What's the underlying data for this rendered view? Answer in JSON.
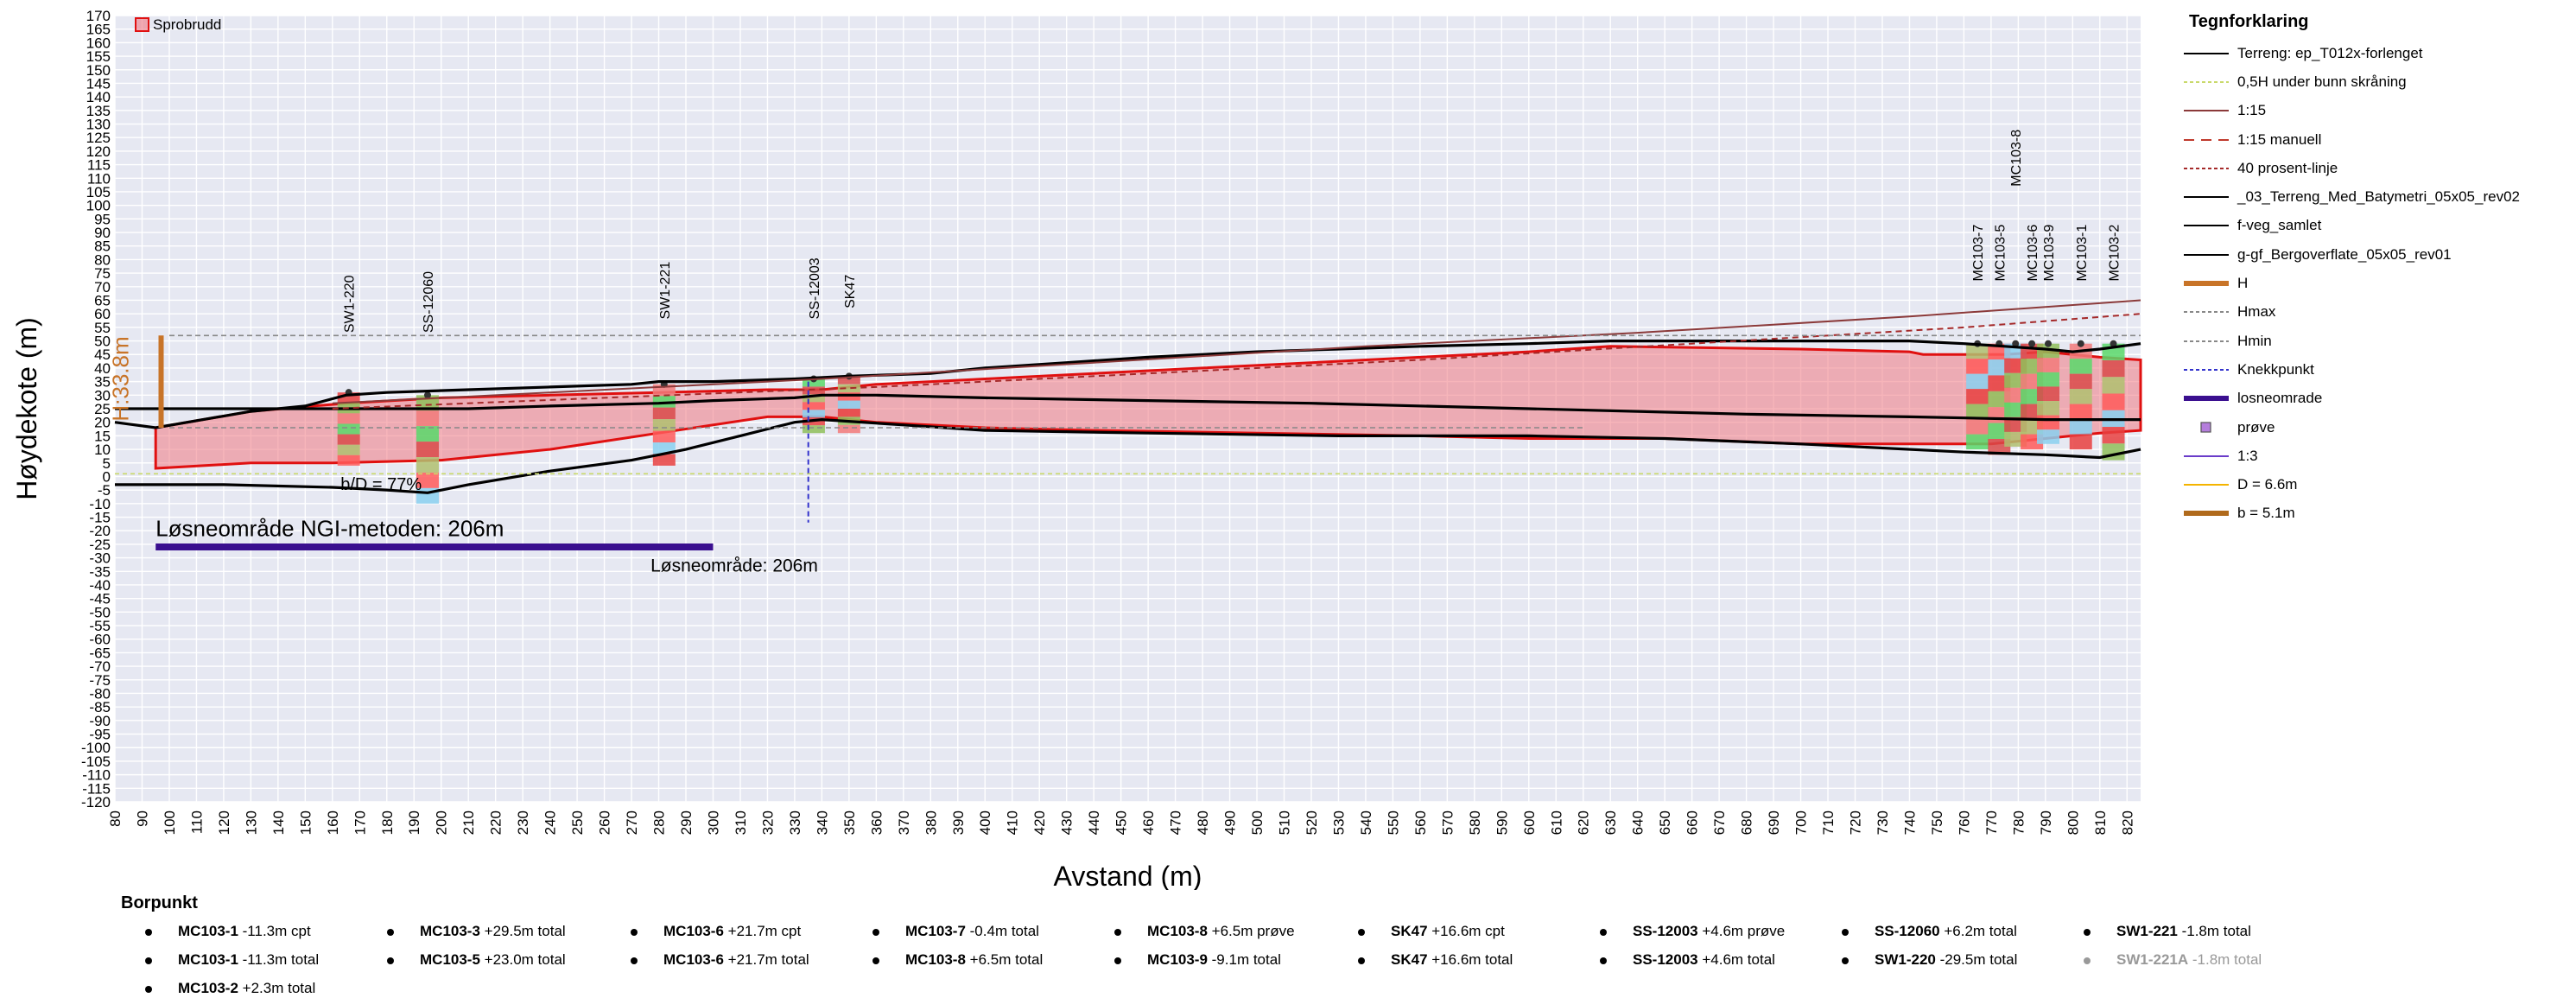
{
  "chart_data": {
    "type": "area",
    "xlabel": "Avstand (m)",
    "ylabel": "Høydekote (m)",
    "xlim": [
      80,
      825
    ],
    "ylim": [
      -120,
      170
    ],
    "xticks_step": 10,
    "yticks_step": 5,
    "grid": true,
    "top_legend": "Sprobrudd",
    "series": [
      {
        "name": "Terreng: ep_T012x-forlenget",
        "style": "terrain",
        "color": "#000000",
        "x": [
          80,
          95,
          130,
          150,
          165,
          180,
          210,
          240,
          270,
          280,
          300,
          330,
          350,
          380,
          400,
          430,
          460,
          500,
          530,
          560,
          600,
          630,
          660,
          700,
          740,
          760,
          775,
          790,
          800,
          810,
          825
        ],
        "y": [
          20,
          18,
          24,
          26,
          30,
          31,
          32,
          33,
          34,
          35,
          35,
          36,
          37,
          38,
          40,
          42,
          44,
          46,
          47,
          48,
          49,
          50,
          50,
          50,
          50,
          49,
          48,
          47,
          46,
          47,
          49
        ]
      },
      {
        "name": "_03_Terreng_Med_Batymetri_05x05_rev02",
        "style": "bathy",
        "color": "#000000",
        "x": [
          80,
          130,
          160,
          180,
          195,
          210,
          240,
          280,
          300,
          330,
          340,
          360,
          400,
          460,
          520,
          600,
          680,
          740,
          790,
          815,
          825
        ],
        "y": [
          25,
          25,
          25,
          25,
          25,
          25,
          26,
          27,
          28,
          29,
          30,
          30,
          29,
          28,
          27,
          25,
          23,
          22,
          21,
          21,
          21
        ]
      },
      {
        "name": "g-gf_Bergoverflate_05x05_rev01",
        "style": "bedrock",
        "color": "#000000",
        "x": [
          80,
          120,
          160,
          180,
          195,
          210,
          240,
          270,
          290,
          310,
          330,
          340,
          370,
          400,
          460,
          530,
          600,
          650,
          700,
          760,
          790,
          810,
          825
        ],
        "y": [
          -3,
          -3,
          -4,
          -5,
          -6,
          -3,
          2,
          6,
          10,
          15,
          20,
          21,
          19,
          17,
          16,
          15,
          15,
          14,
          12,
          9,
          8,
          7,
          10
        ]
      },
      {
        "name": "1:15",
        "style": "line115",
        "color": "#8b3a3a",
        "x": [
          160,
          240,
          340,
          440,
          540,
          640,
          740,
          825
        ],
        "y": [
          27,
          31,
          36,
          42,
          48,
          53,
          59,
          65
        ]
      },
      {
        "name": "40 prosent-linje",
        "style": "p40",
        "color": "#a52a2a",
        "x": [
          160,
          260,
          360,
          460,
          560,
          660,
          760,
          825
        ],
        "y": [
          25,
          29,
          33,
          38,
          43,
          49,
          55,
          60
        ]
      },
      {
        "name": "Hmax",
        "style": "hmax",
        "color": "#888888",
        "x": [
          100,
          825
        ],
        "y": [
          52,
          52
        ]
      },
      {
        "name": "Hmin",
        "style": "hmin",
        "color": "#888888",
        "x": [
          100,
          620
        ],
        "y": [
          18,
          18
        ]
      },
      {
        "name": "0,5H under bunn skråning",
        "style": "halfH",
        "color": "#c9d96b",
        "x": [
          80,
          825
        ],
        "y": [
          1,
          1
        ]
      },
      {
        "name": "Knekkpunkt",
        "style": "knekk",
        "color": "#3333cc",
        "x": [
          335,
          335
        ],
        "y": [
          35,
          -17
        ]
      },
      {
        "name": "losneomrade",
        "style": "losne",
        "color": "#3a0f8f",
        "x": [
          95,
          300
        ],
        "y": [
          -26,
          -26
        ]
      },
      {
        "name": "H",
        "style": "H",
        "color": "#c87428",
        "x": [
          97,
          97
        ],
        "y": [
          18,
          52
        ]
      }
    ],
    "sprobrudd_upper": {
      "x": [
        95,
        130,
        165,
        200,
        240,
        280,
        320,
        340,
        360,
        400,
        440,
        480,
        520,
        560,
        600,
        630,
        700,
        740,
        745,
        760,
        775,
        790,
        810,
        825
      ],
      "y": [
        18,
        24,
        27,
        29,
        30,
        31,
        32,
        32,
        34,
        36,
        38,
        40,
        42,
        44,
        46,
        48,
        47,
        46,
        45,
        45,
        45,
        46,
        44,
        43
      ]
    },
    "sprobrudd_lower": {
      "x": [
        825,
        810,
        790,
        770,
        740,
        700,
        650,
        600,
        560,
        500,
        440,
        400,
        360,
        340,
        320,
        280,
        240,
        200,
        160,
        130,
        95
      ],
      "y": [
        17,
        16,
        14,
        12,
        12,
        12,
        14,
        14,
        15,
        16,
        17,
        18,
        20,
        22,
        22,
        16,
        10,
        6,
        5,
        5,
        3
      ]
    },
    "annotations": [
      {
        "text": "H:33.8m",
        "x": 85,
        "y": 36,
        "color": "#c87428",
        "rotate": -90,
        "size": 26
      },
      {
        "text": "b/D = 77%",
        "x": 163,
        "y": -5,
        "color": "#000000",
        "rotate": 0,
        "size": 20
      },
      {
        "text": "Løsneområde NGI-metoden: 206m",
        "x": 95,
        "y": -22,
        "color": "#000000",
        "rotate": 0,
        "size": 26
      },
      {
        "text": "Løsneområde: 206m",
        "x": 277,
        "y": -35,
        "color": "#000000",
        "rotate": 0,
        "size": 21
      }
    ],
    "boreholes": [
      {
        "name": "SW1-220",
        "x": 166,
        "top": 31,
        "bottom": 4,
        "label_y": 53
      },
      {
        "name": "SS-12060",
        "x": 195,
        "top": 30,
        "bottom": -10,
        "label_y": 53
      },
      {
        "name": "SW1-221",
        "x": 282,
        "top": 34,
        "bottom": 4,
        "label_y": 58
      },
      {
        "name": "SS-12003",
        "x": 337,
        "top": 36,
        "bottom": 16,
        "label_y": 58
      },
      {
        "name": "SK47",
        "x": 350,
        "top": 37,
        "bottom": 16,
        "label_y": 62
      },
      {
        "name": "MC103-7",
        "x": 765,
        "top": 49,
        "bottom": 10,
        "label_y": 72
      },
      {
        "name": "MC103-5",
        "x": 773,
        "top": 49,
        "bottom": 8,
        "label_y": 72
      },
      {
        "name": "MC103-8",
        "x": 779,
        "top": 49,
        "bottom": 11,
        "label_y": 107
      },
      {
        "name": "MC103-6",
        "x": 785,
        "top": 49,
        "bottom": 10,
        "label_y": 72
      },
      {
        "name": "MC103-9",
        "x": 791,
        "top": 49,
        "bottom": 12,
        "label_y": 72
      },
      {
        "name": "MC103-1",
        "x": 803,
        "top": 49,
        "bottom": 10,
        "label_y": 72
      },
      {
        "name": "MC103-2",
        "x": 815,
        "top": 49,
        "bottom": 6,
        "label_y": 72
      }
    ]
  },
  "legend": {
    "title": "Tegnforklaring",
    "items": [
      {
        "label": "Terreng: ep_T012x-forlenget",
        "sym": "solid",
        "color": "#000000"
      },
      {
        "label": "0,5H under bunn skråning",
        "sym": "dashed",
        "color": "#c9d96b"
      },
      {
        "label": "1:15",
        "sym": "solid",
        "color": "#8b3a3a"
      },
      {
        "label": "1:15 manuell",
        "sym": "longdash",
        "color": "#c0392b"
      },
      {
        "label": "40 prosent-linje",
        "sym": "dashed",
        "color": "#a52a2a"
      },
      {
        "label": "_03_Terreng_Med_Batymetri_05x05_rev02",
        "sym": "solid",
        "color": "#000000"
      },
      {
        "label": "f-veg_samlet",
        "sym": "solid",
        "color": "#000000"
      },
      {
        "label": "g-gf_Bergoverflate_05x05_rev01",
        "sym": "solid",
        "color": "#000000"
      },
      {
        "label": "H",
        "sym": "thick",
        "color": "#c87428"
      },
      {
        "label": "Hmax",
        "sym": "dashed",
        "color": "#888888"
      },
      {
        "label": "Hmin",
        "sym": "dashed",
        "color": "#888888"
      },
      {
        "label": "Knekkpunkt",
        "sym": "dashed",
        "color": "#3333cc"
      },
      {
        "label": "losneomrade",
        "sym": "thick",
        "color": "#3a0f8f"
      },
      {
        "label": "prøve",
        "sym": "square",
        "color": "#b57edc"
      },
      {
        "label": "1:3",
        "sym": "solid",
        "color": "#6a3cc9"
      },
      {
        "label": "D = 6.6m",
        "sym": "solid",
        "color": "#f4b400"
      },
      {
        "label": "b = 5.1m",
        "sym": "thick",
        "color": "#b06a1c"
      }
    ]
  },
  "borpunkt": {
    "title": "Borpunkt",
    "items": [
      {
        "name": "MC103-1",
        "value": " -11.3m cpt"
      },
      {
        "name": "MC103-1",
        "value": " -11.3m total"
      },
      {
        "name": "MC103-2",
        "value": " +2.3m total"
      },
      {
        "name": "MC103-3",
        "value": " +29.5m total"
      },
      {
        "name": "MC103-5",
        "value": " +23.0m total"
      },
      {
        "name": "MC103-6",
        "value": " +21.7m cpt"
      },
      {
        "name": "MC103-6",
        "value": " +21.7m total"
      },
      {
        "name": "MC103-7",
        "value": " -0.4m total"
      },
      {
        "name": "MC103-8",
        "value": " +6.5m total"
      },
      {
        "name": "MC103-8",
        "value": " +6.5m prøve"
      },
      {
        "name": "MC103-9",
        "value": " -9.1m total"
      },
      {
        "name": "SK47",
        "value": " +16.6m cpt"
      },
      {
        "name": "SK47",
        "value": " +16.6m total"
      },
      {
        "name": "SS-12003",
        "value": " +4.6m prøve"
      },
      {
        "name": "SS-12003",
        "value": " +4.6m total"
      },
      {
        "name": "SS-12060",
        "value": " +6.2m total"
      },
      {
        "name": "SW1-220",
        "value": " -29.5m total"
      },
      {
        "name": "SW1-221",
        "value": " -1.8m total"
      },
      {
        "name": "SW1-221A",
        "value": " -1.8m total",
        "grey": true
      }
    ]
  }
}
